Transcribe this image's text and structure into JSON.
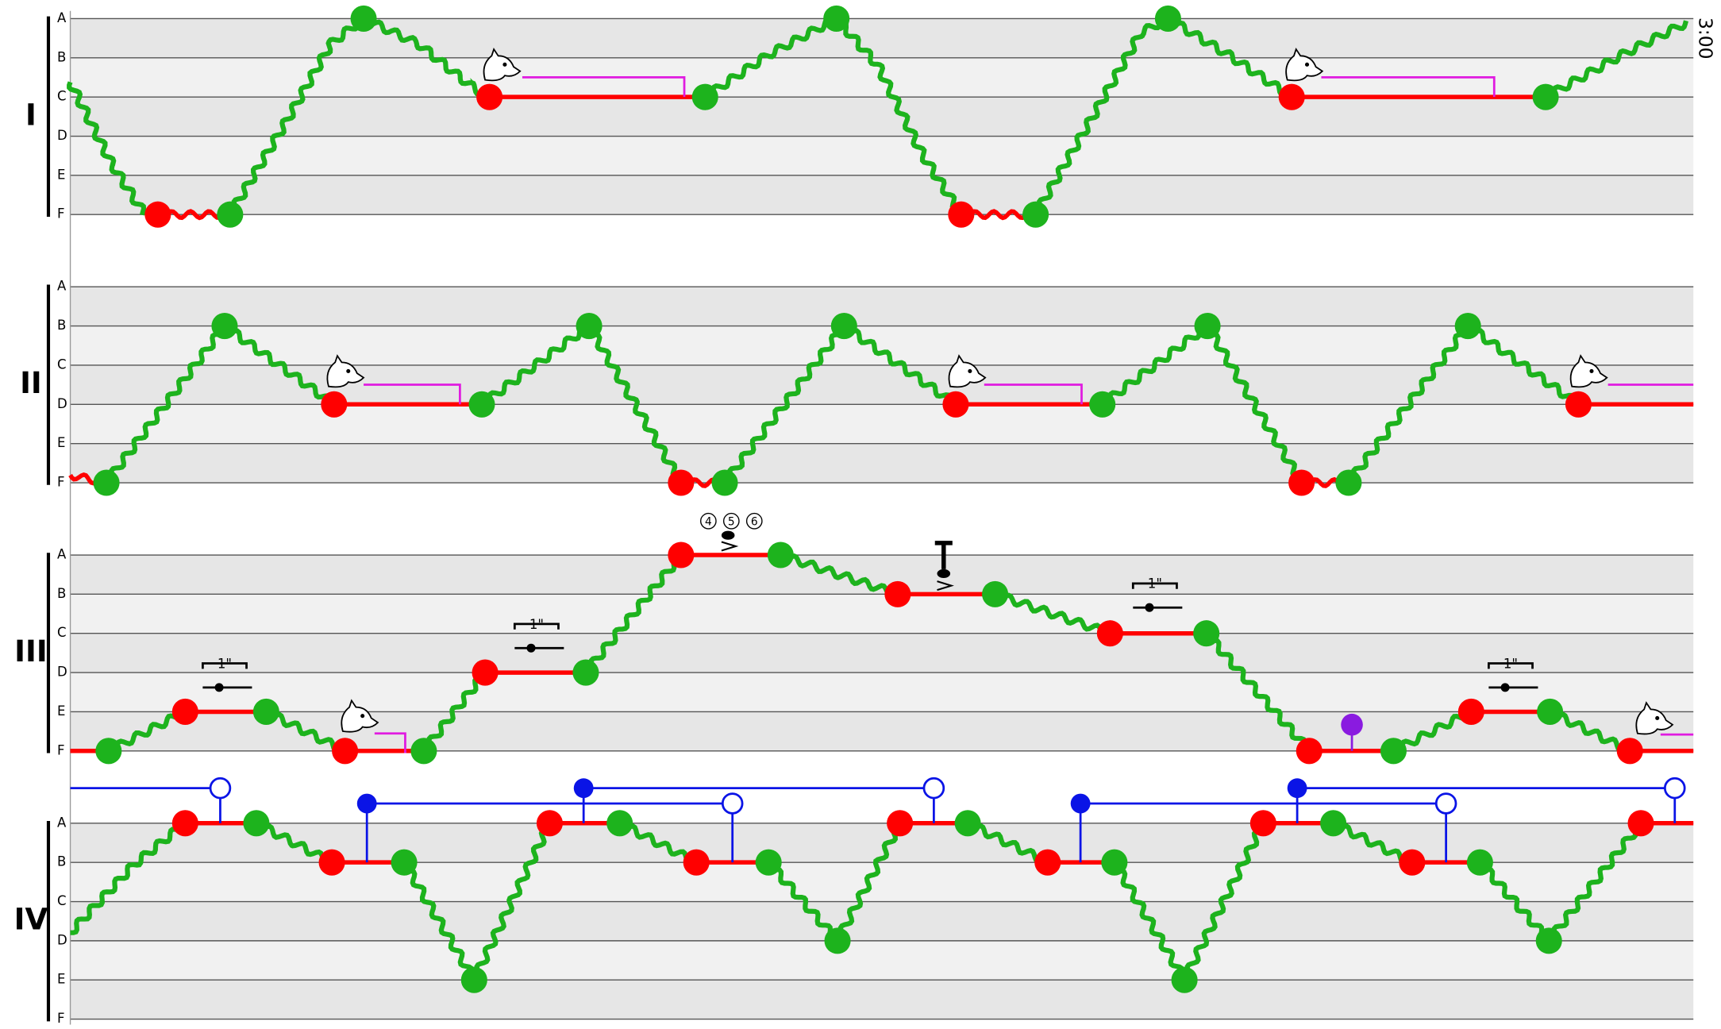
{
  "timestamp": "3:00",
  "systems": [
    {
      "label": "I",
      "lanes": [
        "A",
        "B",
        "C",
        "D",
        "E",
        "F"
      ]
    },
    {
      "label": "II",
      "lanes": [
        "A",
        "B",
        "C",
        "D",
        "E",
        "F"
      ]
    },
    {
      "label": "III",
      "lanes": [
        "A",
        "B",
        "C",
        "D",
        "E",
        "F"
      ]
    },
    {
      "label": "IV",
      "lanes": [
        "A",
        "B",
        "C",
        "D",
        "E",
        "F"
      ]
    }
  ],
  "durations": [
    "1\"",
    "1\"",
    "1\"",
    "1\""
  ],
  "fingering": [
    "4",
    "5",
    "6"
  ]
}
